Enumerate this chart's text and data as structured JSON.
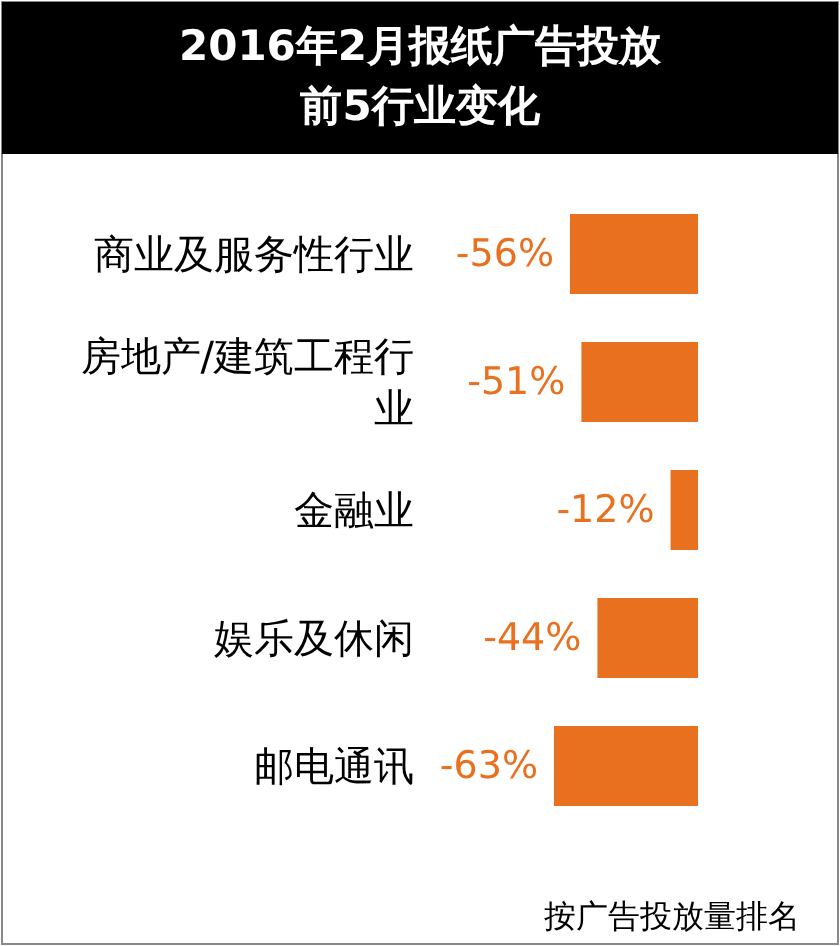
{
  "chart_data": {
    "type": "bar",
    "orientation": "horizontal",
    "title": "2016年2月报纸广告投放前5行业变化",
    "categories": [
      "商业及服务性行业",
      "房地产/建筑工程行业",
      "金融业",
      "娱乐及休闲",
      "邮电通讯"
    ],
    "values": [
      -56,
      -51,
      -12,
      -44,
      -63
    ],
    "color": "#e8701f",
    "value_labels": [
      "-56%",
      "-51%",
      "-12%",
      "-44%",
      "-63%"
    ],
    "annotations": [
      "按广告投放量排名"
    ]
  }
}
